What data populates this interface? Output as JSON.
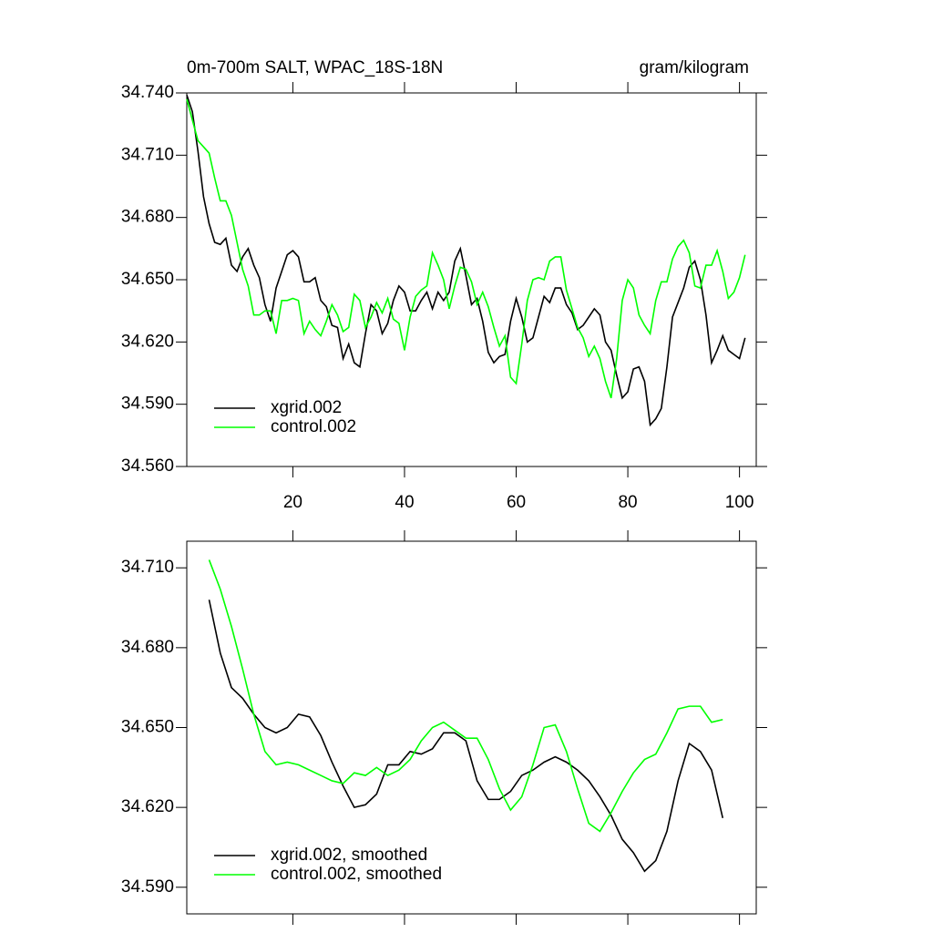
{
  "chart_data": [
    {
      "type": "line",
      "title": "0m-700m SALT, WPAC_18S-18N",
      "units": "gram/kilogram",
      "x": [
        1,
        2,
        3,
        4,
        5,
        6,
        7,
        8,
        9,
        10,
        11,
        12,
        13,
        14,
        15,
        16,
        17,
        18,
        19,
        20,
        21,
        22,
        23,
        24,
        25,
        26,
        27,
        28,
        29,
        30,
        31,
        32,
        33,
        34,
        35,
        36,
        37,
        38,
        39,
        40,
        41,
        42,
        43,
        44,
        45,
        46,
        47,
        48,
        49,
        50,
        51,
        52,
        53,
        54,
        55,
        56,
        57,
        58,
        59,
        60,
        61,
        62,
        63,
        64,
        65,
        66,
        67,
        68,
        69,
        70,
        71,
        72,
        73,
        74,
        75,
        76,
        77,
        78,
        79,
        80,
        81,
        82,
        83,
        84,
        85,
        86,
        87,
        88,
        89,
        90,
        91,
        92,
        93,
        94,
        95,
        96,
        97,
        98,
        99,
        100,
        101
      ],
      "series": [
        {
          "name": "xgrid.002",
          "color": "#000000",
          "values": [
            34.739,
            34.731,
            34.712,
            34.69,
            34.677,
            34.668,
            34.667,
            34.67,
            34.657,
            34.654,
            34.661,
            34.665,
            34.657,
            34.651,
            34.638,
            34.63,
            34.646,
            34.654,
            34.662,
            34.664,
            34.661,
            34.649,
            34.649,
            34.651,
            34.64,
            34.637,
            34.628,
            34.627,
            34.612,
            34.619,
            34.61,
            34.608,
            34.624,
            34.638,
            34.635,
            34.624,
            34.629,
            34.64,
            34.647,
            34.644,
            34.635,
            34.635,
            34.64,
            34.644,
            34.636,
            34.644,
            34.64,
            34.644,
            34.659,
            34.665,
            34.652,
            34.638,
            34.641,
            34.63,
            34.615,
            34.61,
            34.613,
            34.614,
            34.63,
            34.641,
            34.632,
            34.62,
            34.622,
            34.632,
            34.642,
            34.639,
            34.646,
            34.646,
            34.638,
            34.634,
            34.626,
            34.628,
            34.632,
            34.636,
            34.633,
            34.62,
            34.616,
            34.604,
            34.593,
            34.596,
            34.607,
            34.608,
            34.601,
            34.58,
            34.583,
            34.588,
            34.608,
            34.632,
            34.639,
            34.646,
            34.656,
            34.659,
            34.65,
            34.633,
            34.61,
            34.616,
            34.623,
            34.616,
            34.614,
            34.612,
            34.622
          ]
        },
        {
          "name": "control.002",
          "color": "#00ff00",
          "values": [
            34.737,
            34.727,
            34.717,
            34.714,
            34.711,
            34.699,
            34.688,
            34.688,
            34.681,
            34.668,
            34.655,
            34.647,
            34.633,
            34.633,
            34.635,
            34.635,
            34.624,
            34.64,
            34.64,
            34.641,
            34.64,
            34.624,
            34.63,
            34.626,
            34.623,
            34.63,
            34.638,
            34.633,
            34.625,
            34.627,
            34.643,
            34.64,
            34.627,
            34.632,
            34.639,
            34.634,
            34.641,
            34.631,
            34.629,
            34.616,
            34.632,
            34.642,
            34.645,
            34.647,
            34.663,
            34.657,
            34.65,
            34.636,
            34.647,
            34.656,
            34.655,
            34.649,
            34.638,
            34.644,
            34.637,
            34.627,
            34.618,
            34.623,
            34.603,
            34.6,
            34.619,
            34.64,
            34.65,
            34.651,
            34.65,
            34.659,
            34.661,
            34.661,
            34.645,
            34.636,
            34.627,
            34.622,
            34.613,
            34.618,
            34.612,
            34.601,
            34.593,
            34.612,
            34.64,
            34.65,
            34.646,
            34.633,
            34.628,
            34.624,
            34.64,
            34.649,
            34.649,
            34.66,
            34.666,
            34.669,
            34.663,
            34.647,
            34.646,
            34.657,
            34.657,
            34.664,
            34.654,
            34.641,
            34.644,
            34.651,
            34.662
          ]
        }
      ],
      "xlim": [
        1,
        103
      ],
      "ylim": [
        34.56,
        34.74
      ],
      "xticks": [
        20,
        40,
        60,
        80,
        100
      ],
      "yticks": [
        {
          "value": 34.56,
          "label": "34.560"
        },
        {
          "value": 34.59,
          "label": "34.590"
        },
        {
          "value": 34.62,
          "label": "34.620"
        },
        {
          "value": 34.65,
          "label": "34.650"
        },
        {
          "value": 34.68,
          "label": "34.680"
        },
        {
          "value": 34.71,
          "label": "34.710"
        },
        {
          "value": 34.74,
          "label": "34.740"
        }
      ],
      "legend": "lower left"
    },
    {
      "type": "line",
      "x": [
        5,
        7,
        9,
        11,
        13,
        15,
        17,
        19,
        21,
        23,
        25,
        27,
        29,
        31,
        33,
        35,
        37,
        39,
        41,
        43,
        45,
        47,
        49,
        51,
        53,
        55,
        57,
        59,
        61,
        63,
        65,
        67,
        69,
        71,
        73,
        75,
        77,
        79,
        81,
        83,
        85,
        87,
        89,
        91,
        93,
        95,
        97
      ],
      "series": [
        {
          "name": "xgrid.002, smoothed",
          "color": "#000000",
          "values": [
            34.698,
            34.678,
            34.665,
            34.661,
            34.655,
            34.65,
            34.648,
            34.65,
            34.655,
            34.654,
            34.647,
            34.637,
            34.628,
            34.62,
            34.621,
            34.625,
            34.636,
            34.636,
            34.641,
            34.64,
            34.642,
            34.648,
            34.648,
            34.645,
            34.63,
            34.623,
            34.623,
            34.626,
            34.632,
            34.634,
            34.637,
            34.639,
            34.637,
            34.634,
            34.63,
            34.624,
            34.617,
            34.608,
            34.603,
            34.596,
            34.6,
            34.611,
            34.63,
            34.644,
            34.641,
            34.634,
            34.616
          ]
        },
        {
          "name": "control.002, smoothed",
          "color": "#00ff00",
          "values": [
            34.713,
            34.702,
            34.688,
            34.672,
            34.655,
            34.641,
            34.636,
            34.637,
            34.636,
            34.634,
            34.632,
            34.63,
            34.629,
            34.633,
            34.632,
            34.635,
            34.632,
            34.634,
            34.638,
            34.645,
            34.65,
            34.652,
            34.649,
            34.646,
            34.646,
            34.638,
            34.627,
            34.619,
            34.624,
            34.636,
            34.65,
            34.651,
            34.641,
            34.627,
            34.614,
            34.611,
            34.618,
            34.626,
            34.633,
            34.638,
            34.64,
            34.648,
            34.657,
            34.658,
            34.658,
            34.652,
            34.653
          ]
        }
      ],
      "xlim": [
        1,
        103
      ],
      "ylim": [
        34.58,
        34.72
      ],
      "xticks": [
        20,
        40,
        60,
        80,
        100
      ],
      "yticks": [
        {
          "value": 34.59,
          "label": "34.590"
        },
        {
          "value": 34.62,
          "label": "34.620"
        },
        {
          "value": 34.65,
          "label": "34.650"
        },
        {
          "value": 34.68,
          "label": "34.680"
        },
        {
          "value": 34.71,
          "label": "34.710"
        }
      ],
      "legend": "lower left"
    }
  ]
}
